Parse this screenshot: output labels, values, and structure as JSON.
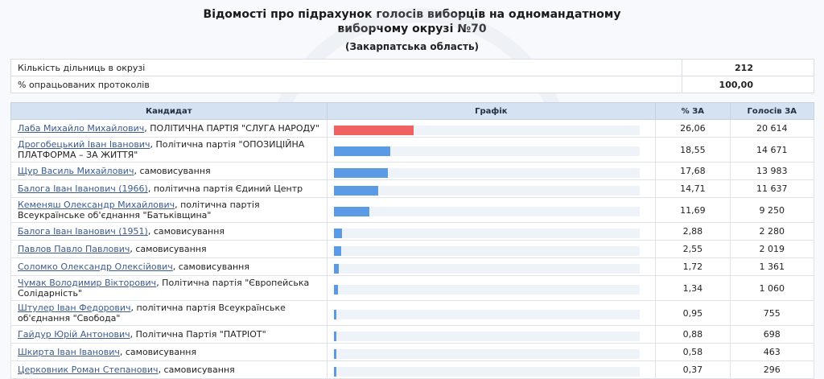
{
  "header": {
    "title_line1": "Відомості про підрахунок голосів виборців на одномандатному",
    "title_line2": "виборчому окрузі №70",
    "region": "(Закарпатська область)"
  },
  "summary": {
    "precincts_label": "Кількість дільниць в окрузі",
    "precincts_value": "212",
    "processed_label": "% опрацьованих протоколів",
    "processed_value": "100,00"
  },
  "columns": {
    "candidate": "Кандидат",
    "graph": "Графік",
    "pct": "% ЗА",
    "votes": "Голосів ЗА"
  },
  "colors": {
    "leader_bar": "#f06161",
    "bar": "#5b9be6",
    "track": "#eef2f9"
  },
  "chart_data": {
    "type": "bar",
    "orientation": "horizontal",
    "xlim": [
      0,
      100
    ],
    "categories": [
      "Лаба Михайло Михайлович",
      "Дрогобецький Іван Іванович",
      "Щур Василь Михайлович",
      "Балога Іван Іванович (1966)",
      "Кеменяш Олександр Михайлович",
      "Балога Іван Іванович (1951)",
      "Павлов Павло Павлович",
      "Соломко Олександр Олексійович",
      "Чумак Володимир Вікторович",
      "Штулер Іван Федорович",
      "Гайдур Юрій Антонович",
      "Шкирта Іван Іванович",
      "Церковник Роман Степанович"
    ],
    "values": [
      26.06,
      18.55,
      17.68,
      14.71,
      11.69,
      2.88,
      2.55,
      1.72,
      1.34,
      0.95,
      0.88,
      0.58,
      0.37
    ]
  },
  "candidates": [
    {
      "name": "Лаба Михайло Михайлович",
      "party": ", ПОЛІТИЧНА ПАРТІЯ \"СЛУГА НАРОДУ\"",
      "pct": "26,06",
      "votes": "20 614",
      "share": 26.06,
      "leader": true
    },
    {
      "name": "Дрогобецький Іван Іванович",
      "party": ", Політична партія \"ОПОЗИЦІЙНА ПЛАТФОРМА – ЗА ЖИТТЯ\"",
      "pct": "18,55",
      "votes": "14 671",
      "share": 18.55,
      "leader": false
    },
    {
      "name": "Щур Василь Михайлович",
      "party": ", самовисування",
      "pct": "17,68",
      "votes": "13 983",
      "share": 17.68,
      "leader": false
    },
    {
      "name": "Балога Іван Іванович (1966)",
      "party": ", політична партія Єдиний Центр",
      "pct": "14,71",
      "votes": "11 637",
      "share": 14.71,
      "leader": false
    },
    {
      "name": "Кеменяш Олександр Михайлович",
      "party": ", політична партія Всеукраїнське об'єднання \"Батьківщина\"",
      "pct": "11,69",
      "votes": "9 250",
      "share": 11.69,
      "leader": false
    },
    {
      "name": "Балога Іван Іванович (1951)",
      "party": ", самовисування",
      "pct": "2,88",
      "votes": "2 280",
      "share": 2.88,
      "leader": false
    },
    {
      "name": "Павлов Павло Павлович",
      "party": ", самовисування",
      "pct": "2,55",
      "votes": "2 019",
      "share": 2.55,
      "leader": false
    },
    {
      "name": "Соломко Олександр Олексійович",
      "party": ", самовисування",
      "pct": "1,72",
      "votes": "1 361",
      "share": 1.72,
      "leader": false
    },
    {
      "name": "Чумак Володимир Вікторович",
      "party": ", Політична партія \"Європейська Солідарність\"",
      "pct": "1,34",
      "votes": "1 060",
      "share": 1.34,
      "leader": false
    },
    {
      "name": "Штулер Іван Федорович",
      "party": ", політична партія Всеукраїнське об'єднання \"Свобода\"",
      "pct": "0,95",
      "votes": "755",
      "share": 0.95,
      "leader": false
    },
    {
      "name": "Гайдур Юрій Антонович",
      "party": ", Політична Партія \"ПАТРІОТ\"",
      "pct": "0,88",
      "votes": "698",
      "share": 0.88,
      "leader": false
    },
    {
      "name": "Шкирта Іван Іванович",
      "party": ", самовисування",
      "pct": "0,58",
      "votes": "463",
      "share": 0.58,
      "leader": false
    },
    {
      "name": "Церковник Роман Степанович",
      "party": ", самовисування",
      "pct": "0,37",
      "votes": "296",
      "share": 0.37,
      "leader": false
    }
  ]
}
